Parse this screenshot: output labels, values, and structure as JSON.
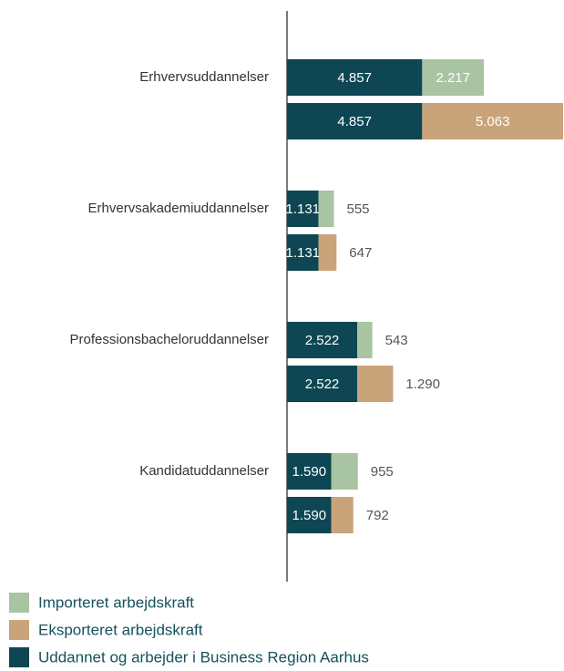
{
  "chart_data": {
    "type": "bar",
    "categories": [
      "Erhvervsuddannelser",
      "Erhvervsakademiuddannelser",
      "Professionsbacheloruddannelser",
      "Kandidatuddannelser"
    ],
    "series": [
      {
        "name": "Importeret arbejdskraft",
        "color": "#a9c4a2",
        "values": [
          2217,
          555,
          543,
          955
        ],
        "value_labels": [
          "2.217",
          "555",
          "543",
          "955"
        ]
      },
      {
        "name": "Eksporteret arbejdskraft",
        "color": "#c9a47a",
        "values": [
          5063,
          647,
          1290,
          792
        ],
        "value_labels": [
          "5.063",
          "647",
          "1.290",
          "792"
        ]
      },
      {
        "name": "Uddannet og arbejder i Business Region Aarhus",
        "color": "#0e4753",
        "values": [
          4857,
          1131,
          2522,
          1590
        ],
        "value_labels": [
          "4.857",
          "1.131",
          "2.522",
          "1.590"
        ]
      }
    ],
    "legend": "bottom-left"
  }
}
